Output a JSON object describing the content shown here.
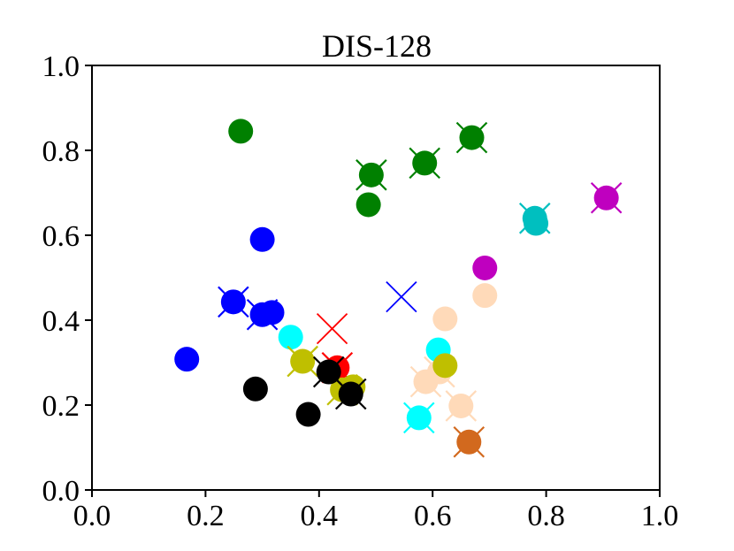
{
  "chart_data": {
    "type": "scatter",
    "title": "DIS-128",
    "xlabel": "",
    "ylabel": "",
    "xlim": [
      0.0,
      1.0
    ],
    "ylim": [
      0.0,
      1.0
    ],
    "x_ticks": [
      "0.0",
      "0.2",
      "0.4",
      "0.6",
      "0.8",
      "1.0"
    ],
    "y_ticks": [
      "0.0",
      "0.2",
      "0.4",
      "0.6",
      "0.8",
      "1.0"
    ],
    "grid": false,
    "legend": "none",
    "points": [
      {
        "x": 0.262,
        "y": 0.845,
        "color": "#008000",
        "crossed": false
      },
      {
        "x": 0.492,
        "y": 0.742,
        "color": "#008000",
        "crossed": true
      },
      {
        "x": 0.586,
        "y": 0.77,
        "color": "#008000",
        "crossed": true
      },
      {
        "x": 0.669,
        "y": 0.83,
        "color": "#008000",
        "crossed": true
      },
      {
        "x": 0.487,
        "y": 0.672,
        "color": "#008000",
        "crossed": false
      },
      {
        "x": 0.3,
        "y": 0.59,
        "color": "#0000ff",
        "crossed": false
      },
      {
        "x": 0.249,
        "y": 0.443,
        "color": "#0000ff",
        "crossed": true
      },
      {
        "x": 0.3,
        "y": 0.413,
        "color": "#0000ff",
        "crossed": true
      },
      {
        "x": 0.317,
        "y": 0.418,
        "color": "#0000ff",
        "crossed": false
      },
      {
        "x": 0.167,
        "y": 0.308,
        "color": "#0000ff",
        "crossed": false
      },
      {
        "x": 0.35,
        "y": 0.36,
        "color": "#00ffff",
        "crossed": false
      },
      {
        "x": 0.61,
        "y": 0.33,
        "color": "#00ffff",
        "crossed": false
      },
      {
        "x": 0.576,
        "y": 0.17,
        "color": "#00ffff",
        "crossed": true
      },
      {
        "x": 0.78,
        "y": 0.64,
        "color": "#00bfbf",
        "crossed": true
      },
      {
        "x": 0.782,
        "y": 0.628,
        "color": "#00bfbf",
        "crossed": false
      },
      {
        "x": 0.906,
        "y": 0.688,
        "color": "#bf00bf",
        "crossed": true
      },
      {
        "x": 0.692,
        "y": 0.523,
        "color": "#bf00bf",
        "crossed": false
      },
      {
        "x": 0.692,
        "y": 0.458,
        "color": "#ffdab9",
        "crossed": false
      },
      {
        "x": 0.622,
        "y": 0.403,
        "color": "#ffdab9",
        "crossed": false
      },
      {
        "x": 0.612,
        "y": 0.278,
        "color": "#ffdab9",
        "crossed": true
      },
      {
        "x": 0.588,
        "y": 0.255,
        "color": "#ffdab9",
        "crossed": true
      },
      {
        "x": 0.65,
        "y": 0.198,
        "color": "#ffdab9",
        "crossed": true
      },
      {
        "x": 0.432,
        "y": 0.288,
        "color": "#ff0000",
        "crossed": true
      },
      {
        "x": 0.371,
        "y": 0.303,
        "color": "#bfbf00",
        "crossed": true
      },
      {
        "x": 0.622,
        "y": 0.293,
        "color": "#bfbf00",
        "crossed": false
      },
      {
        "x": 0.441,
        "y": 0.236,
        "color": "#bfbf00",
        "crossed": true
      },
      {
        "x": 0.46,
        "y": 0.243,
        "color": "#bfbf00",
        "crossed": false
      },
      {
        "x": 0.664,
        "y": 0.113,
        "color": "#d2691e",
        "crossed": true
      },
      {
        "x": 0.288,
        "y": 0.238,
        "color": "#000000",
        "crossed": false
      },
      {
        "x": 0.381,
        "y": 0.178,
        "color": "#000000",
        "crossed": false
      },
      {
        "x": 0.417,
        "y": 0.278,
        "color": "#000000",
        "crossed": true
      },
      {
        "x": 0.456,
        "y": 0.226,
        "color": "#000000",
        "crossed": true
      }
    ],
    "centroids": [
      {
        "x": 0.545,
        "y": 0.455,
        "color": "#0000ff"
      },
      {
        "x": 0.423,
        "y": 0.38,
        "color": "#ff0000"
      }
    ]
  }
}
